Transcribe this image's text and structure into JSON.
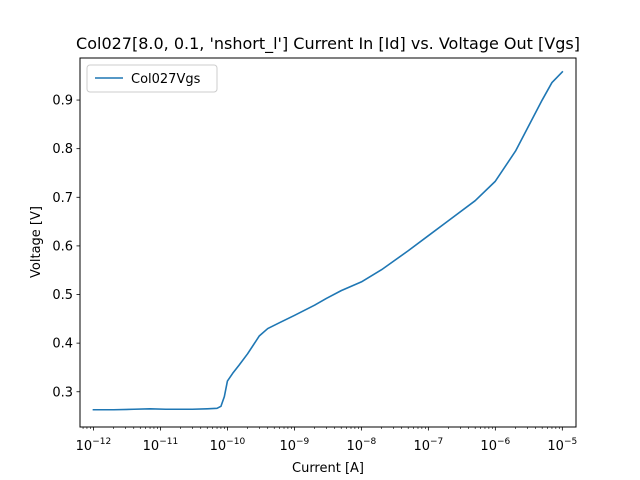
{
  "chart_data": {
    "type": "line",
    "title": "Col027[8.0, 0.1, 'nshort_l'] Current In [Id] vs. Voltage Out [Vgs]",
    "xlabel": "Current [A]",
    "ylabel": "Voltage [V]",
    "xscale": "log",
    "xlim": [
      6.3e-13,
      1.6e-05
    ],
    "ylim": [
      0.2275,
      0.9865
    ],
    "x_tick_base": "10",
    "x_ticks": [
      {
        "value": 1e-12,
        "exponent": "−12"
      },
      {
        "value": 1e-11,
        "exponent": "−11"
      },
      {
        "value": 1e-10,
        "exponent": "−10"
      },
      {
        "value": 1e-09,
        "exponent": "−9"
      },
      {
        "value": 1e-08,
        "exponent": "−8"
      },
      {
        "value": 1e-07,
        "exponent": "−7"
      },
      {
        "value": 1e-06,
        "exponent": "−6"
      },
      {
        "value": 1e-05,
        "exponent": "−5"
      }
    ],
    "y_ticks": [
      {
        "value": 0.3,
        "label": "0.3"
      },
      {
        "value": 0.4,
        "label": "0.4"
      },
      {
        "value": 0.5,
        "label": "0.5"
      },
      {
        "value": 0.6,
        "label": "0.6"
      },
      {
        "value": 0.7,
        "label": "0.7"
      },
      {
        "value": 0.8,
        "label": "0.8"
      },
      {
        "value": 0.9,
        "label": "0.9"
      }
    ],
    "grid": false,
    "legend": {
      "placement": "top-left",
      "entries": [
        "Col027Vgs"
      ]
    },
    "series": [
      {
        "name": "Col027Vgs",
        "color": "#1f77b4",
        "x": [
          1e-12,
          2e-12,
          4e-12,
          7e-12,
          1.2e-11,
          2e-11,
          3e-11,
          5e-11,
          7e-11,
          8e-11,
          9e-11,
          1e-10,
          1.2e-10,
          1.5e-10,
          2e-10,
          3e-10,
          4e-10,
          6e-10,
          1e-09,
          2e-09,
          3e-09,
          5e-09,
          1e-08,
          2e-08,
          5e-08,
          1e-07,
          2e-07,
          5e-07,
          1e-06,
          2e-06,
          5e-06,
          7e-06,
          1e-05
        ],
        "y": [
          0.263,
          0.263,
          0.264,
          0.265,
          0.264,
          0.264,
          0.264,
          0.265,
          0.266,
          0.27,
          0.29,
          0.322,
          0.338,
          0.355,
          0.378,
          0.415,
          0.43,
          0.442,
          0.457,
          0.478,
          0.492,
          0.508,
          0.526,
          0.551,
          0.59,
          0.621,
          0.652,
          0.693,
          0.733,
          0.795,
          0.9,
          0.936,
          0.958
        ]
      }
    ]
  }
}
